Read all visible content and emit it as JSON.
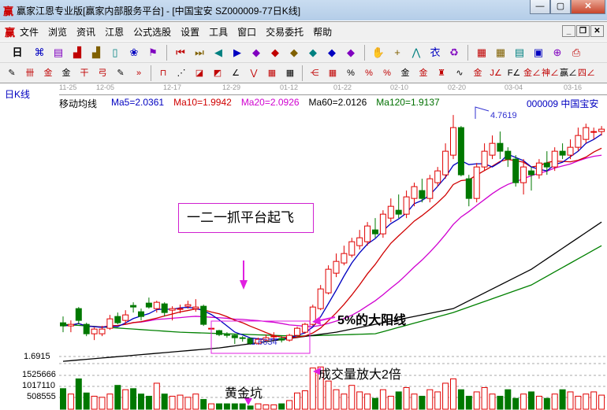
{
  "window": {
    "title": "赢家江恩专业版[赢家内部服务平台] - [中国宝安  SZ000009-77日K线]",
    "logo": "赢",
    "min": "—",
    "max": "▢",
    "close": "✕"
  },
  "menu": {
    "logo": "赢",
    "items": [
      "文件",
      "浏览",
      "资讯",
      "江恩",
      "公式选股",
      "设置",
      "工具",
      "窗口",
      "交易委托",
      "帮助"
    ],
    "mdi": [
      "_",
      "❐",
      "✕"
    ]
  },
  "toolbar1": {
    "period": "日",
    "icons": [
      "kline-icon",
      "list-icon",
      "bars3-icon",
      "bars9-icon",
      "candle-icon",
      "stats-icon",
      "flag-icon",
      "first-icon",
      "last-icon",
      "left-icon",
      "right-icon",
      "gann-left-icon",
      "gann-right-icon",
      "gann-both-icon",
      "gann-cross-icon",
      "gann-x-icon",
      "gann-star-icon",
      "hand-icon",
      "crosshair-icon",
      "line-icon",
      "clothes-icon",
      "recycle-icon",
      "calendar-icon",
      "calculator-icon",
      "notes-icon",
      "save-icon",
      "network-icon",
      "print-icon"
    ],
    "glyphs": [
      "⌘",
      "▤",
      "▟",
      "▟",
      "▯",
      "❀",
      "⚑",
      "⏮",
      "⏭",
      "◀",
      "▶",
      "◆",
      "◆",
      "◆",
      "◆",
      "◆",
      "◆",
      "✋",
      "+",
      "⋀",
      "衣",
      "♻",
      "▦",
      "▦",
      "▤",
      "▣",
      "⊕",
      "⎙"
    ]
  },
  "toolbar2": {
    "glyphs": [
      "✎",
      "卌",
      "金",
      "金",
      "干",
      "弓",
      "✎",
      "»",
      "⊓",
      "⋰",
      "◪",
      "◩",
      "∠",
      "⋁",
      "▦",
      "▦",
      "⋲",
      "▦",
      "%",
      "%",
      "%",
      "金",
      "金",
      "♜",
      "∿",
      "金",
      "J∠",
      "F∠",
      "金∠",
      "神∠",
      "赢∠",
      "四∠"
    ]
  },
  "chart": {
    "period_label": "日K线",
    "dates": [
      "11-25",
      "12-05",
      "12-17",
      "12-29",
      "01-12",
      "01-22",
      "02-10",
      "02-20",
      "03-04",
      "03-16"
    ],
    "ma_title": "移动均线",
    "ma": [
      {
        "label": "Ma5=2.0361",
        "color": "#0000c0"
      },
      {
        "label": "Ma10=1.9942",
        "color": "#d00000"
      },
      {
        "label": "Ma20=2.0926",
        "color": "#d000d0"
      },
      {
        "label": "Ma60=2.0126",
        "color": "#000000"
      },
      {
        "label": "Ma120=1.9137",
        "color": "#008000"
      }
    ],
    "stock": "000009  中国宝安",
    "high_label": "4.7619",
    "low_label": "1.6634",
    "axis_price": "1.6915",
    "vol_axis": [
      "1525666",
      "1017110",
      "508555"
    ],
    "annotations": {
      "platform": "一二一抓平台起飞",
      "big_yang": "5%的大阳线",
      "volume": "成交量放大2倍",
      "golden_pit": "黄金坑"
    },
    "colors": {
      "up": "#e00000",
      "down": "#007800",
      "annot": "#e020e0"
    },
    "candles": [
      [
        2.12,
        2.08,
        2.2,
        2.0
      ],
      [
        2.08,
        2.1,
        2.15,
        2.0
      ],
      [
        2.3,
        2.15,
        2.32,
        2.1
      ],
      [
        2.1,
        1.98,
        2.12,
        1.95
      ],
      [
        1.98,
        2.04,
        2.06,
        1.9
      ],
      [
        1.98,
        2.04,
        2.08,
        1.95
      ],
      [
        2.05,
        2.17,
        2.22,
        2.03
      ],
      [
        2.2,
        2.12,
        2.25,
        2.1
      ],
      [
        2.15,
        2.22,
        2.28,
        2.1
      ],
      [
        2.34,
        2.32,
        2.38,
        2.25
      ],
      [
        2.26,
        2.2,
        2.3,
        2.15
      ],
      [
        2.37,
        2.32,
        2.44,
        2.3
      ],
      [
        2.3,
        2.38,
        2.4,
        2.25
      ],
      [
        2.36,
        2.25,
        2.38,
        2.2
      ],
      [
        2.28,
        2.3,
        2.33,
        2.15
      ],
      [
        2.29,
        2.3,
        2.35,
        2.24
      ],
      [
        2.33,
        2.35,
        2.4,
        2.3
      ],
      [
        2.3,
        2.32,
        2.42,
        2.26
      ],
      [
        2.33,
        2.1,
        2.35,
        2.08
      ],
      [
        2.05,
        2.05,
        2.05,
        2.05
      ],
      [
        2.02,
        1.97,
        2.03,
        1.95
      ],
      [
        1.97,
        1.96,
        2.0,
        1.93
      ],
      [
        1.96,
        1.93,
        1.97,
        1.85
      ],
      [
        1.93,
        1.92,
        1.95,
        1.88
      ],
      [
        1.92,
        1.86,
        1.93,
        1.84
      ],
      [
        1.86,
        1.91,
        1.93,
        1.84
      ],
      [
        1.9,
        1.93,
        1.97,
        1.88
      ],
      [
        1.95,
        1.95,
        2.0,
        1.9
      ],
      [
        1.92,
        1.9,
        1.95,
        1.87
      ],
      [
        1.9,
        1.96,
        1.98,
        1.88
      ],
      [
        1.96,
        2.05,
        2.07,
        1.95
      ],
      [
        2.0,
        2.1,
        2.12,
        1.98
      ],
      [
        2.1,
        2.32,
        2.35,
        2.08
      ],
      [
        2.3,
        2.55,
        2.6,
        2.28
      ],
      [
        2.5,
        2.8,
        2.85,
        2.48
      ],
      [
        2.75,
        2.9,
        3.0,
        2.7
      ],
      [
        2.88,
        3.0,
        3.1,
        2.85
      ],
      [
        2.98,
        3.15,
        3.2,
        2.95
      ],
      [
        3.1,
        3.2,
        3.3,
        3.05
      ],
      [
        3.15,
        3.35,
        3.4,
        3.1
      ],
      [
        3.3,
        3.25,
        3.45,
        3.2
      ],
      [
        3.25,
        3.5,
        3.55,
        3.2
      ],
      [
        3.45,
        3.6,
        3.7,
        3.4
      ],
      [
        3.55,
        3.5,
        3.75,
        3.45
      ],
      [
        3.5,
        3.72,
        3.8,
        3.45
      ],
      [
        3.7,
        3.85,
        3.9,
        3.6
      ],
      [
        3.8,
        3.7,
        3.95,
        3.65
      ],
      [
        3.7,
        3.95,
        4.0,
        3.65
      ],
      [
        3.9,
        4.05,
        4.1,
        3.85
      ],
      [
        4.0,
        4.3,
        4.4,
        3.95
      ],
      [
        4.25,
        4.6,
        4.76,
        4.2
      ],
      [
        4.6,
        4.0,
        4.62,
        3.98
      ],
      [
        3.95,
        3.7,
        4.0,
        3.6
      ],
      [
        3.7,
        4.1,
        4.15,
        3.65
      ],
      [
        4.1,
        4.3,
        4.4,
        4.05
      ],
      [
        4.25,
        4.4,
        4.5,
        4.2
      ],
      [
        4.4,
        4.3,
        4.55,
        4.2
      ],
      [
        4.3,
        4.2,
        4.35,
        4.1
      ],
      [
        4.2,
        3.9,
        4.25,
        3.85
      ],
      [
        3.9,
        4.1,
        4.2,
        3.75
      ],
      [
        4.05,
        4.0,
        4.1,
        3.8
      ],
      [
        4.0,
        4.15,
        4.2,
        3.95
      ],
      [
        4.15,
        4.1,
        4.3,
        4.0
      ],
      [
        4.1,
        4.3,
        4.35,
        4.05
      ],
      [
        4.3,
        4.25,
        4.4,
        4.2
      ],
      [
        4.25,
        4.35,
        4.45,
        4.2
      ],
      [
        4.35,
        4.5,
        4.6,
        4.3
      ],
      [
        4.45,
        4.6,
        4.65,
        4.4
      ],
      [
        4.55,
        4.55,
        4.6,
        4.45
      ],
      [
        4.55,
        4.58,
        4.62,
        4.5
      ]
    ],
    "volumes": [
      950000,
      700000,
      1400000,
      750000,
      600000,
      550000,
      700000,
      1100000,
      900000,
      950000,
      700000,
      600000,
      1200000,
      700000,
      600000,
      650000,
      550000,
      700000,
      450000,
      250000,
      250000,
      250000,
      250000,
      250000,
      150000,
      250000,
      200000,
      200000,
      250000,
      400000,
      750000,
      850000,
      1900000,
      1950000,
      1300000,
      900000,
      700000,
      1100000,
      800000,
      700000,
      500000,
      900000,
      600000,
      800000,
      1000000,
      700000,
      600000,
      900000,
      800000,
      1200000,
      1400000,
      900000,
      600000,
      800000,
      1000000,
      700000,
      600000,
      900000,
      500000,
      700000,
      800000,
      600000,
      500000,
      700000,
      900000,
      800000,
      600000,
      700000,
      800000,
      650000
    ],
    "ma60": [
      [
        0,
        1.63
      ],
      [
        20,
        1.8
      ],
      [
        35,
        2.0
      ],
      [
        50,
        2.3
      ],
      [
        60,
        2.8
      ],
      [
        69,
        3.4
      ]
    ],
    "ma120": [
      [
        0,
        2.1
      ],
      [
        15,
        2.0
      ],
      [
        30,
        1.95
      ],
      [
        40,
        1.98
      ],
      [
        50,
        2.25
      ],
      [
        60,
        2.6
      ],
      [
        69,
        3.1
      ]
    ]
  }
}
